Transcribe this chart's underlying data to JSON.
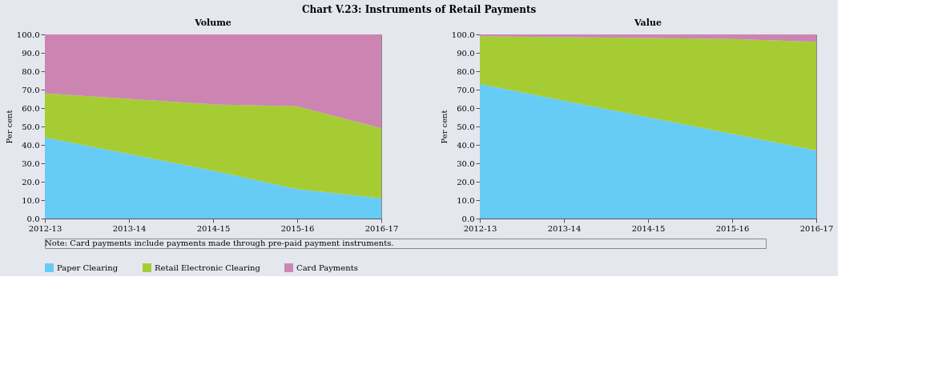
{
  "chart_data": [
    {
      "type": "area",
      "title": "Volume",
      "stacked": true,
      "ylabel": "Per cent",
      "categories": [
        "2012-13",
        "2013-14",
        "2014-15",
        "2015-16",
        "2016-17"
      ],
      "ylim": [
        0,
        100
      ],
      "yticks": [
        {
          "value": 0,
          "label": "0.0"
        },
        {
          "value": 10,
          "label": "10.0"
        },
        {
          "value": 20,
          "label": "20.0"
        },
        {
          "value": 30,
          "label": "30.0"
        },
        {
          "value": 40,
          "label": "40.0"
        },
        {
          "value": 50,
          "label": "50.0"
        },
        {
          "value": 60,
          "label": "60.0"
        },
        {
          "value": 70,
          "label": "70.0"
        },
        {
          "value": 80,
          "label": "80.0"
        },
        {
          "value": 90,
          "label": "90.0"
        },
        {
          "value": 100,
          "label": "100.0"
        }
      ],
      "legend": "bottom",
      "grid": false,
      "series": [
        {
          "name": "Paper Clearing",
          "color": "#66ccf5",
          "values": [
            44,
            35,
            26,
            16,
            11
          ]
        },
        {
          "name": "Retail Electronic Clearing",
          "color": "#a6cc33",
          "values": [
            24,
            30,
            36,
            45,
            38
          ]
        },
        {
          "name": "Card Payments",
          "color": "#cc85b3",
          "values": [
            32,
            35,
            38,
            39,
            51
          ]
        }
      ],
      "annotations": [
        "Chart V.23: Instruments of Retail Payments",
        "Note: Card payments include payments made through pre-paid payment instruments."
      ]
    },
    {
      "type": "area",
      "title": "Value",
      "stacked": true,
      "ylabel": "Per cent",
      "categories": [
        "2012-13",
        "2013-14",
        "2014-15",
        "2015-16",
        "2016-17"
      ],
      "ylim": [
        0,
        100
      ],
      "yticks": [
        {
          "value": 0,
          "label": "0.0"
        },
        {
          "value": 10,
          "label": "10.0"
        },
        {
          "value": 20,
          "label": "20.0"
        },
        {
          "value": 30,
          "label": "30.0"
        },
        {
          "value": 40,
          "label": "40.0"
        },
        {
          "value": 50,
          "label": "50.0"
        },
        {
          "value": 60,
          "label": "60.0"
        },
        {
          "value": 70,
          "label": "70.0"
        },
        {
          "value": 80,
          "label": "80.0"
        },
        {
          "value": 90,
          "label": "90.0"
        },
        {
          "value": 100,
          "label": "100.0"
        }
      ],
      "legend": "bottom",
      "grid": false,
      "series": [
        {
          "name": "Paper Clearing",
          "color": "#66ccf5",
          "values": [
            73,
            64,
            55,
            46,
            37
          ]
        },
        {
          "name": "Retail Electronic Clearing",
          "color": "#a6cc33",
          "values": [
            26,
            34.5,
            43,
            51.5,
            59
          ]
        },
        {
          "name": "Card Payments",
          "color": "#cc85b3",
          "values": [
            1,
            1.5,
            2,
            2.5,
            4
          ]
        }
      ]
    }
  ]
}
